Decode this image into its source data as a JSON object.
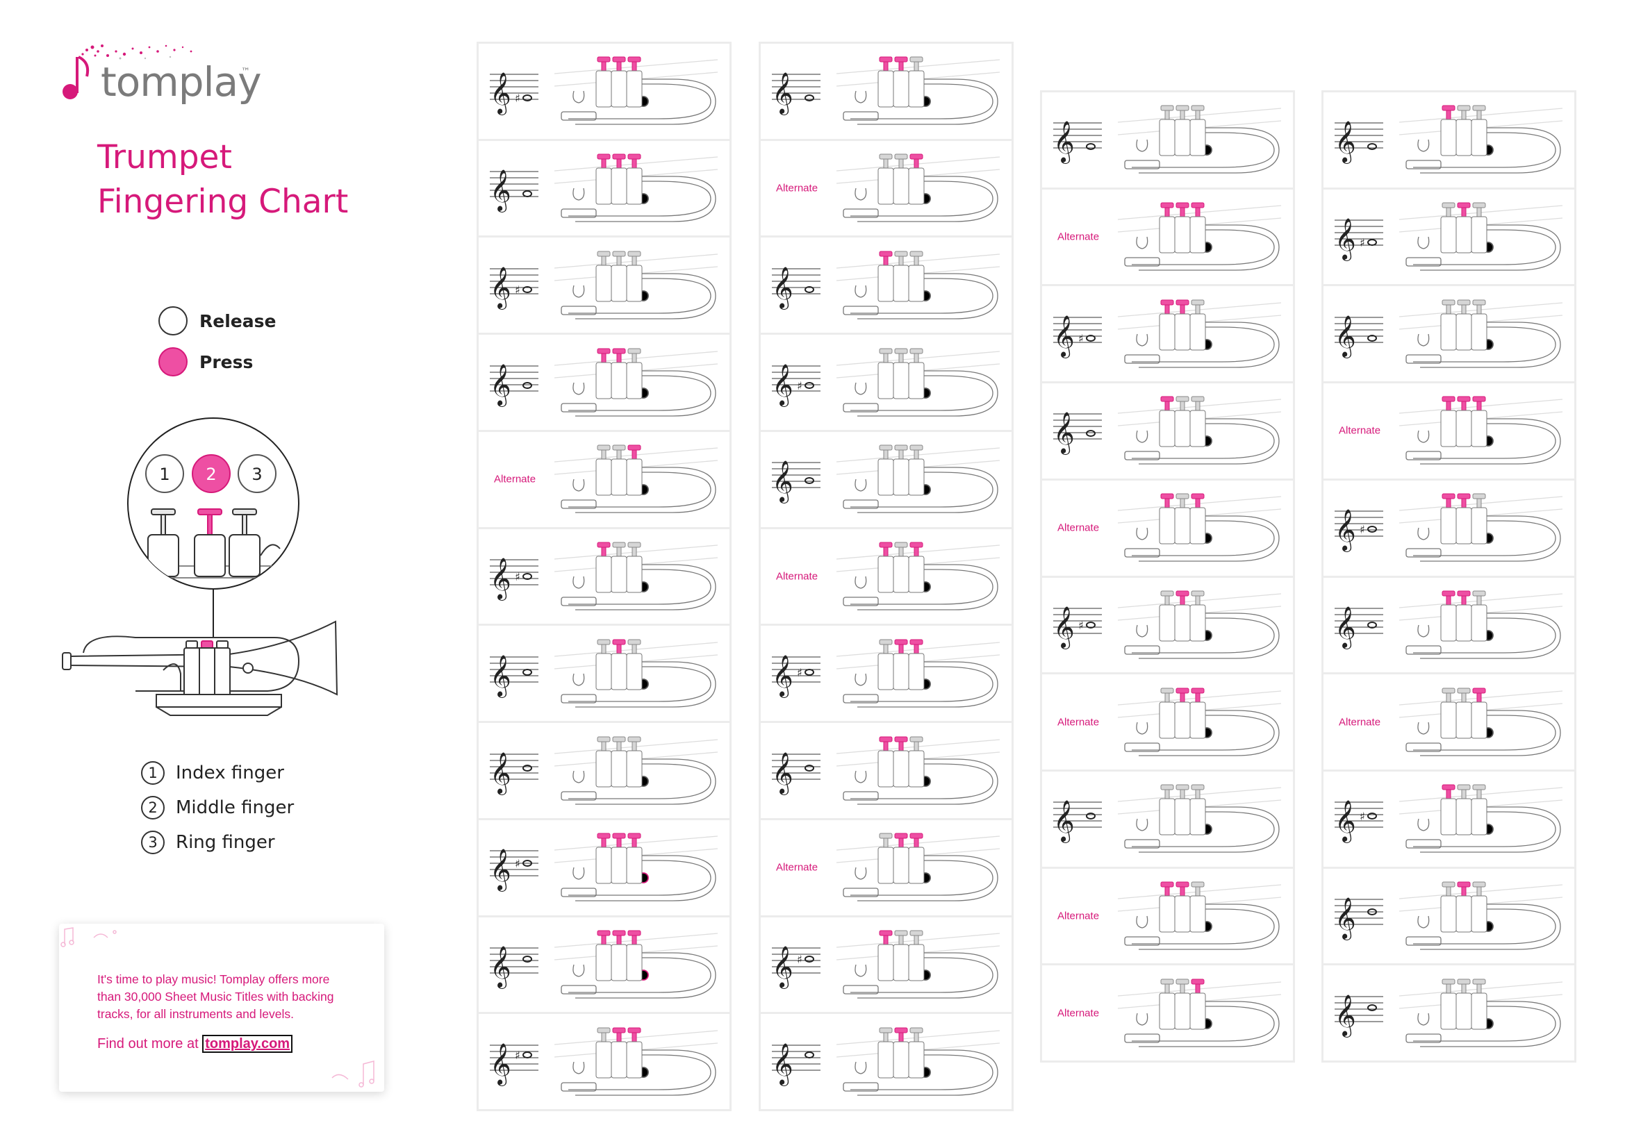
{
  "brand": {
    "name": "tomplay",
    "tm": "™"
  },
  "title": {
    "line1": "Trumpet",
    "line2": "Fingering Chart"
  },
  "legend": [
    {
      "label": "Release",
      "fill": "#ffffff"
    },
    {
      "label": "Press",
      "fill": "#ee4fa3"
    }
  ],
  "valve_diagram": {
    "numbers": [
      "1",
      "2",
      "3"
    ],
    "pressed": [
      2
    ]
  },
  "fingers": [
    {
      "num": "1",
      "label": "Index finger"
    },
    {
      "num": "2",
      "label": "Middle finger"
    },
    {
      "num": "3",
      "label": "Ring finger"
    }
  ],
  "promo": {
    "text": "It's time to play music! Tomplay offers more than 30,000 Sheet Music Titles with backing tracks, for all instruments and levels.",
    "link_prefix": "Find out more at ",
    "link_text": "tomplay.com"
  },
  "colors": {
    "accent": "#d6197a",
    "press": "#ee4fa3",
    "valve": "#d6d6d6"
  },
  "columns": [
    {
      "cells": [
        {
          "alt": null,
          "accidental": "♯",
          "valves": [
            1,
            1,
            1
          ],
          "key": 0
        },
        {
          "alt": null,
          "accidental": null,
          "valves": [
            1,
            1,
            1
          ],
          "key": 0
        },
        {
          "alt": null,
          "accidental": "♯",
          "valves": [
            0,
            0,
            0
          ],
          "key": 0
        },
        {
          "alt": null,
          "accidental": null,
          "valves": [
            1,
            1,
            0
          ],
          "key": 0
        },
        {
          "alt": "Alternate",
          "accidental": null,
          "valves": [
            0,
            0,
            1
          ],
          "key": 0
        },
        {
          "alt": null,
          "accidental": "♯",
          "valves": [
            1,
            0,
            0
          ],
          "key": 0
        },
        {
          "alt": null,
          "accidental": null,
          "valves": [
            0,
            1,
            0
          ],
          "key": 0
        },
        {
          "alt": null,
          "accidental": null,
          "valves": [
            0,
            0,
            0
          ],
          "key": 0
        },
        {
          "alt": null,
          "accidental": "♯",
          "valves": [
            1,
            1,
            1
          ],
          "key": 1
        },
        {
          "alt": null,
          "accidental": null,
          "valves": [
            1,
            1,
            1
          ],
          "key": 1
        },
        {
          "alt": null,
          "accidental": "♯",
          "valves": [
            0,
            1,
            1
          ],
          "key": 0
        }
      ]
    },
    {
      "cells": [
        {
          "alt": null,
          "accidental": null,
          "valves": [
            1,
            1,
            0
          ],
          "key": 0
        },
        {
          "alt": "Alternate",
          "accidental": null,
          "valves": [
            0,
            0,
            1
          ],
          "key": 0
        },
        {
          "alt": null,
          "accidental": null,
          "valves": [
            1,
            0,
            0
          ],
          "key": 0
        },
        {
          "alt": null,
          "accidental": "♯",
          "valves": [
            0,
            0,
            0
          ],
          "key": 0
        },
        {
          "alt": null,
          "accidental": null,
          "valves": [
            0,
            0,
            0
          ],
          "key": 0
        },
        {
          "alt": "Alternate",
          "accidental": null,
          "valves": [
            1,
            0,
            1
          ],
          "key": 0
        },
        {
          "alt": null,
          "accidental": "♯",
          "valves": [
            0,
            1,
            1
          ],
          "key": 0
        },
        {
          "alt": null,
          "accidental": null,
          "valves": [
            1,
            1,
            0
          ],
          "key": 0
        },
        {
          "alt": "Alternate",
          "accidental": null,
          "valves": [
            0,
            1,
            1
          ],
          "key": 0
        },
        {
          "alt": null,
          "accidental": "♯",
          "valves": [
            1,
            0,
            0
          ],
          "key": 0
        },
        {
          "alt": null,
          "accidental": null,
          "valves": [
            0,
            1,
            0
          ],
          "key": 0
        }
      ]
    },
    {
      "cells": [
        {
          "alt": null,
          "accidental": null,
          "valves": [
            0,
            0,
            0
          ],
          "key": 0
        },
        {
          "alt": "Alternate",
          "accidental": null,
          "valves": [
            1,
            1,
            1
          ],
          "key": 0
        },
        {
          "alt": null,
          "accidental": "♯",
          "valves": [
            1,
            1,
            0
          ],
          "key": 0
        },
        {
          "alt": null,
          "accidental": null,
          "valves": [
            1,
            0,
            0
          ],
          "key": 0
        },
        {
          "alt": "Alternate",
          "accidental": null,
          "valves": [
            1,
            0,
            1
          ],
          "key": 0
        },
        {
          "alt": null,
          "accidental": "♯",
          "valves": [
            0,
            1,
            0
          ],
          "key": 0
        },
        {
          "alt": "Alternate",
          "accidental": null,
          "valves": [
            0,
            1,
            1
          ],
          "key": 0
        },
        {
          "alt": null,
          "accidental": null,
          "valves": [
            0,
            0,
            0
          ],
          "key": 0
        },
        {
          "alt": "Alternate",
          "accidental": null,
          "valves": [
            1,
            1,
            0
          ],
          "key": 0
        },
        {
          "alt": "Alternate",
          "accidental": null,
          "valves": [
            0,
            0,
            1
          ],
          "key": 0
        }
      ]
    },
    {
      "cells": [
        {
          "alt": null,
          "accidental": null,
          "valves": [
            1,
            0,
            0
          ],
          "key": 0
        },
        {
          "alt": null,
          "accidental": "♯",
          "valves": [
            0,
            1,
            0
          ],
          "key": 0
        },
        {
          "alt": null,
          "accidental": null,
          "valves": [
            0,
            0,
            0
          ],
          "key": 0
        },
        {
          "alt": "Alternate",
          "accidental": null,
          "valves": [
            1,
            1,
            1
          ],
          "key": 0
        },
        {
          "alt": null,
          "accidental": "♯",
          "valves": [
            1,
            1,
            0
          ],
          "key": 0
        },
        {
          "alt": null,
          "accidental": null,
          "valves": [
            1,
            1,
            0
          ],
          "key": 0
        },
        {
          "alt": "Alternate",
          "accidental": null,
          "valves": [
            0,
            0,
            1
          ],
          "key": 0
        },
        {
          "alt": null,
          "accidental": "♯",
          "valves": [
            1,
            0,
            0
          ],
          "key": 0
        },
        {
          "alt": null,
          "accidental": null,
          "valves": [
            0,
            1,
            0
          ],
          "key": 0
        },
        {
          "alt": null,
          "accidental": null,
          "valves": [
            0,
            0,
            0
          ],
          "key": 0
        }
      ]
    }
  ]
}
